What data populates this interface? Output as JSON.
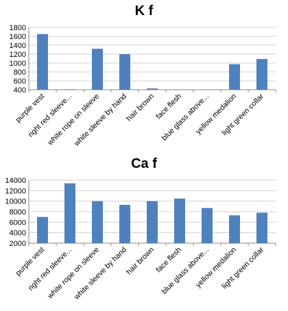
{
  "chart_data": [
    {
      "type": "bar",
      "title": "K f",
      "categories": [
        "purple vest",
        "right red sleeve...",
        "white rope on sleeve",
        "white sleeve by hand",
        "hair brown",
        "face flesh",
        "blue glass above...",
        "yellow medalion",
        "light green collar"
      ],
      "values": [
        1650,
        410,
        1320,
        1200,
        430,
        405,
        405,
        975,
        1090
      ],
      "ylim": [
        400,
        1800
      ],
      "yticks": [
        400,
        600,
        800,
        1000,
        1200,
        1400,
        1600,
        1800
      ],
      "grid": true,
      "bar_color": "#4f81bd"
    },
    {
      "type": "bar",
      "title": "Ca f",
      "categories": [
        "purple vest",
        "right red sleeve...",
        "white rope on sleeve",
        "white sleeve by hand",
        "hair brown",
        "face flesh",
        "blue glass above...",
        "yellow medalion",
        "light green collar"
      ],
      "values": [
        7000,
        13400,
        10000,
        9300,
        10000,
        10500,
        8700,
        7300,
        7800
      ],
      "ylim": [
        2000,
        14000
      ],
      "yticks": [
        2000,
        4000,
        6000,
        8000,
        10000,
        12000,
        14000
      ],
      "grid": true,
      "bar_color": "#4f81bd"
    }
  ]
}
